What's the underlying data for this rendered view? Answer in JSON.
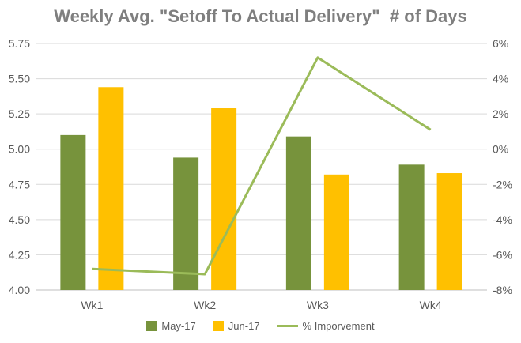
{
  "chart_data": {
    "type": "bar",
    "title": "Weekly Avg. \"Setoff To Actual Delivery\"  # of Days",
    "categories": [
      "Wk1",
      "Wk2",
      "Wk3",
      "Wk4"
    ],
    "series": [
      {
        "name": "May-17",
        "kind": "bar",
        "axis": "left",
        "color": "#77933c",
        "values": [
          5.1,
          4.94,
          5.09,
          4.89
        ]
      },
      {
        "name": "Jun-17",
        "kind": "bar",
        "axis": "left",
        "color": "#ffc000",
        "values": [
          5.44,
          5.29,
          4.82,
          4.83
        ]
      },
      {
        "name": "% Imporvement",
        "kind": "line",
        "axis": "right",
        "color": "#9bbb59",
        "values": [
          -6.8,
          -7.1,
          5.2,
          1.1
        ]
      }
    ],
    "y_left": {
      "ylim": [
        4.0,
        5.75
      ],
      "ticks": [
        "4.00",
        "4.25",
        "4.50",
        "4.75",
        "5.00",
        "5.25",
        "5.50",
        "5.75"
      ]
    },
    "y_right": {
      "ylim": [
        -8,
        6
      ],
      "ticks": [
        "-8%",
        "-6%",
        "-4%",
        "-2%",
        "0%",
        "2%",
        "4%",
        "6%"
      ]
    },
    "grid": true,
    "legend": "bottom"
  }
}
